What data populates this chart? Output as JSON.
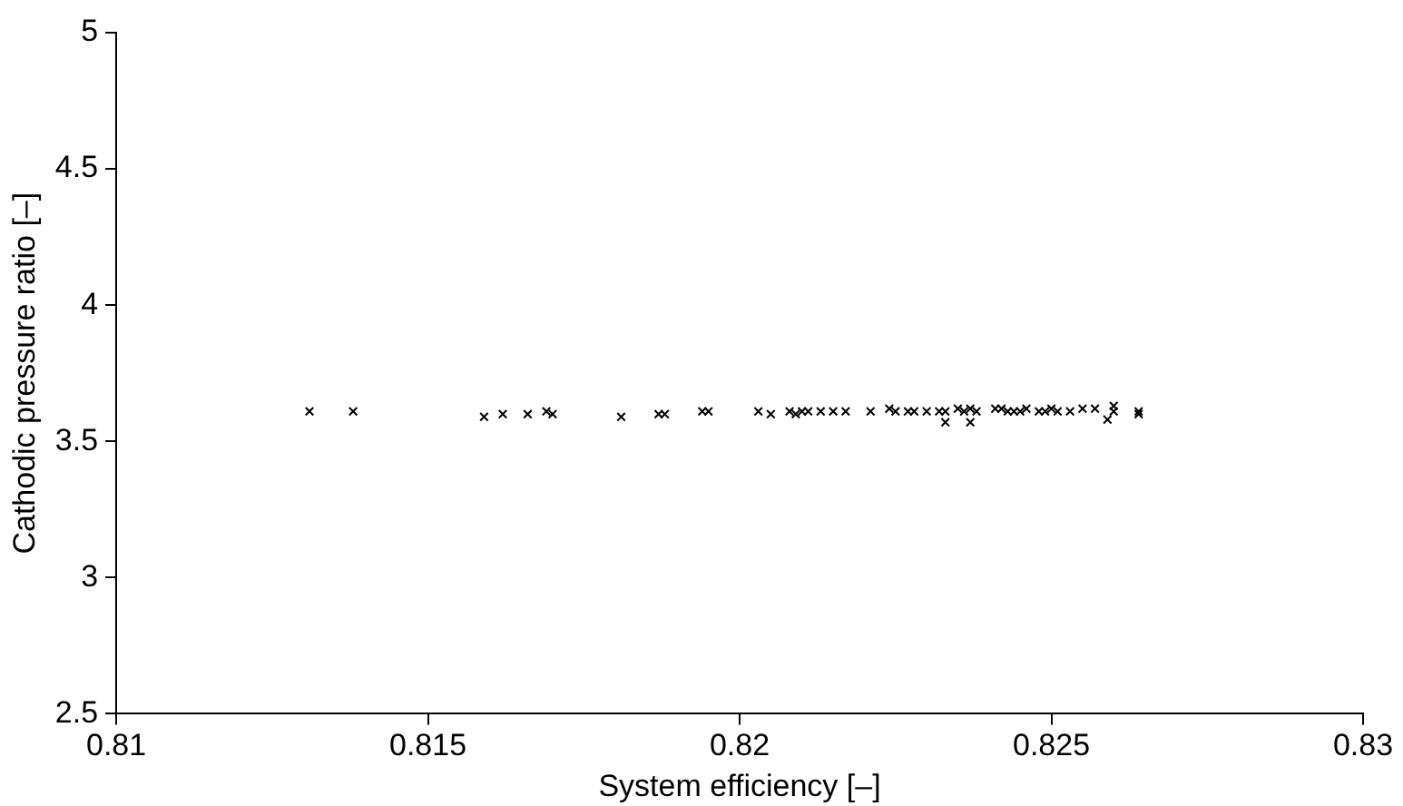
{
  "chart_data": {
    "type": "scatter",
    "xlabel": "System efficiency [–]",
    "ylabel": "Cathodic pressure ratio [–]",
    "x": [
      0.8131,
      0.8138,
      0.8159,
      0.8162,
      0.8166,
      0.8169,
      0.817,
      0.8181,
      0.8187,
      0.8188,
      0.8194,
      0.8195,
      0.8203,
      0.8205,
      0.8208,
      0.8209,
      0.821,
      0.8211,
      0.8213,
      0.8215,
      0.8217,
      0.8221,
      0.8224,
      0.8225,
      0.8227,
      0.8228,
      0.823,
      0.8232,
      0.8233,
      0.8233,
      0.8235,
      0.8236,
      0.8237,
      0.8237,
      0.8238,
      0.8241,
      0.8242,
      0.8243,
      0.8244,
      0.8245,
      0.8246,
      0.8248,
      0.8249,
      0.825,
      0.8251,
      0.8253,
      0.8255,
      0.8257,
      0.8259,
      0.826,
      0.826,
      0.8264,
      0.8264
    ],
    "values": [
      3.61,
      3.61,
      3.59,
      3.6,
      3.6,
      3.61,
      3.6,
      3.59,
      3.6,
      3.6,
      3.61,
      3.61,
      3.61,
      3.6,
      3.61,
      3.6,
      3.61,
      3.61,
      3.61,
      3.61,
      3.61,
      3.61,
      3.62,
      3.61,
      3.61,
      3.61,
      3.61,
      3.61,
      3.61,
      3.57,
      3.62,
      3.61,
      3.62,
      3.57,
      3.61,
      3.62,
      3.62,
      3.61,
      3.61,
      3.61,
      3.62,
      3.61,
      3.61,
      3.62,
      3.61,
      3.61,
      3.62,
      3.62,
      3.58,
      3.63,
      3.61,
      3.61,
      3.6
    ],
    "color": "#000000",
    "marker": "cross",
    "xlim": [
      0.81,
      0.83
    ],
    "xticks": [
      0.81,
      0.815,
      0.82,
      0.825,
      0.83
    ],
    "ylim": [
      2.5,
      5
    ],
    "yticks": [
      2.5,
      3,
      3.5,
      4,
      4.5,
      5
    ],
    "grid": false,
    "legend": false
  }
}
